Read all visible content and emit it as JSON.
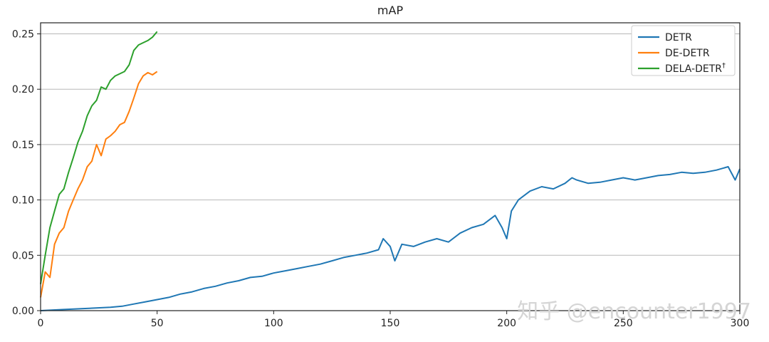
{
  "chart_data": {
    "type": "line",
    "title": "mAP",
    "xlabel": "",
    "ylabel": "",
    "xlim": [
      0,
      300
    ],
    "ylim": [
      0,
      0.26
    ],
    "xticks": [
      "0",
      "50",
      "100",
      "150",
      "200",
      "250",
      "300"
    ],
    "yticks": [
      "0.00",
      "0.05",
      "0.10",
      "0.15",
      "0.20",
      "0.25"
    ],
    "grid": "horizontal",
    "legend_position": "top-right",
    "series": [
      {
        "name": "DETR",
        "color": "#1f77b4",
        "points": [
          [
            0,
            0.0
          ],
          [
            10,
            0.001
          ],
          [
            20,
            0.002
          ],
          [
            30,
            0.003
          ],
          [
            35,
            0.004
          ],
          [
            40,
            0.006
          ],
          [
            45,
            0.008
          ],
          [
            50,
            0.01
          ],
          [
            55,
            0.012
          ],
          [
            60,
            0.015
          ],
          [
            65,
            0.017
          ],
          [
            70,
            0.02
          ],
          [
            75,
            0.022
          ],
          [
            80,
            0.025
          ],
          [
            85,
            0.027
          ],
          [
            90,
            0.03
          ],
          [
            95,
            0.031
          ],
          [
            100,
            0.034
          ],
          [
            105,
            0.036
          ],
          [
            110,
            0.038
          ],
          [
            115,
            0.04
          ],
          [
            120,
            0.042
          ],
          [
            125,
            0.045
          ],
          [
            130,
            0.048
          ],
          [
            135,
            0.05
          ],
          [
            140,
            0.052
          ],
          [
            145,
            0.055
          ],
          [
            147,
            0.065
          ],
          [
            150,
            0.058
          ],
          [
            152,
            0.045
          ],
          [
            155,
            0.06
          ],
          [
            160,
            0.058
          ],
          [
            165,
            0.062
          ],
          [
            170,
            0.065
          ],
          [
            175,
            0.062
          ],
          [
            180,
            0.07
          ],
          [
            185,
            0.075
          ],
          [
            190,
            0.078
          ],
          [
            195,
            0.086
          ],
          [
            198,
            0.075
          ],
          [
            200,
            0.065
          ],
          [
            202,
            0.09
          ],
          [
            205,
            0.1
          ],
          [
            210,
            0.108
          ],
          [
            215,
            0.112
          ],
          [
            220,
            0.11
          ],
          [
            225,
            0.115
          ],
          [
            228,
            0.12
          ],
          [
            230,
            0.118
          ],
          [
            235,
            0.115
          ],
          [
            240,
            0.116
          ],
          [
            245,
            0.118
          ],
          [
            250,
            0.12
          ],
          [
            255,
            0.118
          ],
          [
            260,
            0.12
          ],
          [
            265,
            0.122
          ],
          [
            270,
            0.123
          ],
          [
            275,
            0.125
          ],
          [
            280,
            0.124
          ],
          [
            285,
            0.125
          ],
          [
            290,
            0.127
          ],
          [
            295,
            0.13
          ],
          [
            298,
            0.118
          ],
          [
            300,
            0.128
          ]
        ]
      },
      {
        "name": "DE-DETR",
        "color": "#ff7f0e",
        "points": [
          [
            0,
            0.012
          ],
          [
            2,
            0.035
          ],
          [
            4,
            0.03
          ],
          [
            6,
            0.06
          ],
          [
            8,
            0.07
          ],
          [
            10,
            0.075
          ],
          [
            12,
            0.09
          ],
          [
            14,
            0.1
          ],
          [
            16,
            0.11
          ],
          [
            18,
            0.118
          ],
          [
            20,
            0.13
          ],
          [
            22,
            0.135
          ],
          [
            24,
            0.15
          ],
          [
            26,
            0.14
          ],
          [
            28,
            0.155
          ],
          [
            30,
            0.158
          ],
          [
            32,
            0.162
          ],
          [
            34,
            0.168
          ],
          [
            36,
            0.17
          ],
          [
            38,
            0.18
          ],
          [
            40,
            0.192
          ],
          [
            42,
            0.205
          ],
          [
            44,
            0.212
          ],
          [
            46,
            0.215
          ],
          [
            48,
            0.213
          ],
          [
            50,
            0.216
          ]
        ]
      },
      {
        "name": "DELA-DETR",
        "name_superscript": "†",
        "color": "#2ca02c",
        "points": [
          [
            0,
            0.024
          ],
          [
            2,
            0.05
          ],
          [
            4,
            0.075
          ],
          [
            6,
            0.09
          ],
          [
            8,
            0.105
          ],
          [
            10,
            0.11
          ],
          [
            12,
            0.125
          ],
          [
            14,
            0.138
          ],
          [
            16,
            0.152
          ],
          [
            18,
            0.162
          ],
          [
            20,
            0.176
          ],
          [
            22,
            0.185
          ],
          [
            24,
            0.19
          ],
          [
            26,
            0.202
          ],
          [
            28,
            0.2
          ],
          [
            30,
            0.208
          ],
          [
            32,
            0.212
          ],
          [
            34,
            0.214
          ],
          [
            36,
            0.216
          ],
          [
            38,
            0.222
          ],
          [
            40,
            0.235
          ],
          [
            42,
            0.24
          ],
          [
            44,
            0.242
          ],
          [
            46,
            0.244
          ],
          [
            48,
            0.247
          ],
          [
            50,
            0.252
          ]
        ]
      }
    ]
  },
  "watermark": "知乎 @encounter1997"
}
